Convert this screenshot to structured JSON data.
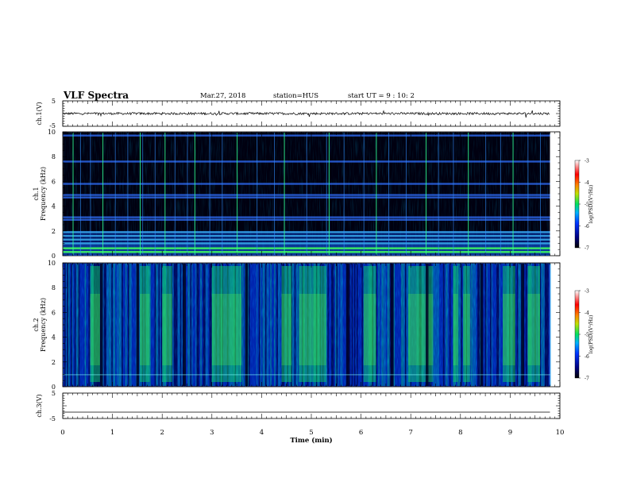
{
  "header": {
    "title": "VLF Spectra",
    "date": "Mar.27, 2018",
    "station": "station=HUS",
    "start_time": "start UT =  9 : 10: 2"
  },
  "chart_data": [
    {
      "type": "line",
      "panel": "ch1-waveform",
      "ylabel": "ch.1(V)",
      "ylim": [
        -5,
        5
      ],
      "yticks": [
        "5",
        "-5"
      ],
      "x": [
        0,
        9.8
      ],
      "y": [
        0,
        0
      ],
      "note": "noisy waveform around 0 V"
    },
    {
      "type": "heatmap",
      "panel": "ch1-spectrogram",
      "ylabel_top": "ch.1",
      "ylabel": "Frequency (kHz)",
      "ylim": [
        0,
        10
      ],
      "yticks": [
        "0",
        "2",
        "4",
        "6",
        "8",
        "10"
      ],
      "xlim": [
        0,
        10
      ],
      "data_end_min": 9.8,
      "colorbar": {
        "label": "log(PSD)(V²/Hz)",
        "range": [
          -7,
          -3
        ],
        "ticks": [
          "-3",
          "-4",
          "-5",
          "-6",
          "-7"
        ]
      },
      "bands_khz": [
        0.3,
        0.6,
        1.0,
        1.3,
        1.6,
        1.9,
        2.9,
        3.1,
        4.7,
        4.9,
        5.8,
        7.6,
        9.7
      ],
      "impulse_times_min": [
        0.2,
        0.35,
        0.55,
        0.8,
        1.05,
        1.3,
        1.55,
        1.6,
        1.85,
        2.05,
        2.25,
        2.5,
        2.65,
        2.95,
        3.2,
        3.5,
        3.9,
        4.25,
        4.45,
        4.9,
        5.3,
        5.35,
        5.65,
        6.05,
        6.3,
        6.55,
        6.9,
        7.3,
        7.55,
        7.85,
        8.15,
        8.5,
        8.8,
        9.05,
        9.35,
        9.6
      ]
    },
    {
      "type": "heatmap",
      "panel": "ch2-spectrogram",
      "ylabel_top": "ch.2",
      "ylabel": "Frequency (kHz)",
      "ylim": [
        0,
        10
      ],
      "yticks": [
        "0",
        "2",
        "4",
        "6",
        "8",
        "10"
      ],
      "xlim": [
        0,
        10
      ],
      "data_end_min": 9.8,
      "colorbar": {
        "label": "log(PSD)(V²/Hz)",
        "range": [
          -7,
          -3
        ],
        "ticks": [
          "-3",
          "-4",
          "-5",
          "-6",
          "-7"
        ]
      },
      "bright_intervals_min": [
        [
          0.55,
          0.75
        ],
        [
          1.55,
          1.75
        ],
        [
          2.0,
          2.2
        ],
        [
          3.0,
          3.6
        ],
        [
          4.4,
          4.6
        ],
        [
          4.75,
          5.3
        ],
        [
          6.05,
          6.3
        ],
        [
          6.95,
          7.45
        ],
        [
          7.85,
          7.95
        ],
        [
          8.05,
          8.2
        ],
        [
          8.85,
          9.1
        ],
        [
          9.35,
          9.6
        ]
      ],
      "dark_bands_min": [
        0.75,
        1.48,
        2.42,
        3.67,
        5.7,
        6.6,
        7.3,
        8.4,
        9.22
      ]
    },
    {
      "type": "line",
      "panel": "ch3-waveform",
      "ylabel": "ch.3(V)",
      "ylim": [
        -5,
        5
      ],
      "yticks": [
        "5",
        "-5"
      ],
      "x": [
        0,
        9.8
      ],
      "y": [
        -2.5,
        -2.5
      ]
    }
  ],
  "x_axis": {
    "label": "Time (min)",
    "range": [
      0,
      10
    ],
    "ticks": [
      "0",
      "1",
      "2",
      "3",
      "4",
      "5",
      "6",
      "7",
      "8",
      "9",
      "10"
    ]
  }
}
